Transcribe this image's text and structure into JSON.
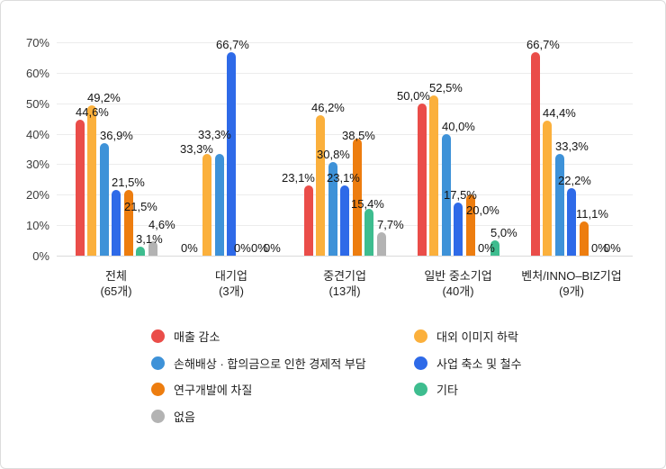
{
  "y_axis": {
    "ticks": [
      {
        "label": "70%",
        "value": 70
      },
      {
        "label": "60%",
        "value": 60
      },
      {
        "label": "50%",
        "value": 50
      },
      {
        "label": "40%",
        "value": 40
      },
      {
        "label": "30%",
        "value": 30
      },
      {
        "label": "20%",
        "value": 20
      },
      {
        "label": "10%",
        "value": 10
      },
      {
        "label": "0%",
        "value": 0
      }
    ]
  },
  "palette": {
    "red": "#EA4D49",
    "amber": "#FBB03C",
    "lightblue": "#3E92D8",
    "blue": "#2E6AE8",
    "orange": "#ED7D0F",
    "green": "#3EBD8F",
    "gray": "#B3B3B3"
  },
  "groups": [
    {
      "name": "전체",
      "count": "(65개)",
      "bars": [
        {
          "key": "sales-decrease",
          "series": "매출 감소",
          "color": "red",
          "value": 44.6,
          "label": "44,6%"
        },
        {
          "key": "image-decline",
          "series": "대외 이미지 하락",
          "color": "amber",
          "value": 49.2,
          "label": "49,2%"
        },
        {
          "key": "settlement-burden",
          "series": "손해배상 · 합의금으로 인한 경제적 부담",
          "color": "lightblue",
          "value": 36.9,
          "label": "36,9%"
        },
        {
          "key": "business-reduction",
          "series": "사업 축소 및 철수",
          "color": "blue",
          "value": 21.5,
          "label": "21,5%"
        },
        {
          "key": "rnd-disruption",
          "series": "연구개발에 차질",
          "color": "orange",
          "value": 21.5,
          "label": "21,5%",
          "label_dy": 27
        },
        {
          "key": "other",
          "series": "기타",
          "color": "green",
          "value": 3.1,
          "label": "3,1%"
        },
        {
          "key": "none",
          "series": "없음",
          "color": "gray",
          "value": 4.6,
          "label": "4,6%",
          "label_dy": -10
        }
      ]
    },
    {
      "name": "대기업",
      "count": "(3개)",
      "bars": [
        {
          "key": "sales-decrease",
          "series": "매출 감소",
          "color": "red",
          "value": 0,
          "label": "0%",
          "label_dx": -11
        },
        {
          "key": "image-decline",
          "series": "대외 이미지 하락",
          "color": "amber",
          "value": 33.3,
          "label": "33,3%",
          "label_dx": -25,
          "label_dy": 3
        },
        {
          "key": "settlement-burden",
          "series": "손해배상 · 합의금으로 인한 경제적 부담",
          "color": "lightblue",
          "value": 33.3,
          "label": "33,3%",
          "label_dx": -19,
          "label_dy": -13
        },
        {
          "key": "business-reduction",
          "series": "사업 축소 및 철수",
          "color": "blue",
          "value": 66.7,
          "label": "66,7%",
          "label_dx": -12
        },
        {
          "key": "rnd-disruption",
          "series": "연구개발에 차질",
          "color": "orange",
          "value": 0,
          "label": "0%",
          "label_dx": -6
        },
        {
          "key": "other",
          "series": "기타",
          "color": "green",
          "value": 0,
          "label": "0%"
        },
        {
          "key": "none",
          "series": "없음",
          "color": "gray",
          "value": 0,
          "label": "0%"
        }
      ]
    },
    {
      "name": "중견기업",
      "count": "(13개)",
      "bars": [
        {
          "key": "sales-decrease",
          "series": "매출 감소",
          "color": "red",
          "value": 23.1,
          "label": "23,1%",
          "label_dx": -25
        },
        {
          "key": "image-decline",
          "series": "대외 이미지 하락",
          "color": "amber",
          "value": 46.2,
          "label": "46,2%",
          "label_dx": -5
        },
        {
          "key": "settlement-burden",
          "series": "손해배상 · 합의금으로 인한 경제적 부담",
          "color": "lightblue",
          "value": 30.8,
          "label": "30,8%",
          "label_dx": -13
        },
        {
          "key": "business-reduction",
          "series": "사업 축소 및 철수",
          "color": "blue",
          "value": 23.1,
          "label": "23,1%",
          "label_dx": -15
        },
        {
          "key": "rnd-disruption",
          "series": "연구개발에 차질",
          "color": "orange",
          "value": 38.5,
          "label": "38,5%",
          "label_dx": -12,
          "label_dy": 5
        },
        {
          "key": "other",
          "series": "기타",
          "color": "green",
          "value": 15.4,
          "label": "15,4%",
          "label_dx": -15,
          "label_dy": 3
        },
        {
          "key": "none",
          "series": "없음",
          "color": "gray",
          "value": 7.7,
          "label": "7,7%"
        }
      ]
    },
    {
      "name": "일반 중소기업",
      "count": "(40개)",
      "bars": [
        {
          "key": "sales-decrease",
          "series": "매출 감소",
          "color": "red",
          "value": 50.0,
          "label": "50,0%",
          "label_dx": -23
        },
        {
          "key": "image-decline",
          "series": "대외 이미지 하락",
          "color": "amber",
          "value": 52.5,
          "label": "52,5%"
        },
        {
          "key": "settlement-burden",
          "series": "손해배상 · 합의금으로 인한 경제적 부담",
          "color": "lightblue",
          "value": 40.0,
          "label": "40,0%"
        },
        {
          "key": "business-reduction",
          "series": "사업 축소 및 철수",
          "color": "blue",
          "value": 17.5,
          "label": "17,5%",
          "label_dx": -11
        },
        {
          "key": "rnd-disruption",
          "series": "연구개발에 차질",
          "color": "orange",
          "value": 20.0,
          "label": "20,0%",
          "label_dy": 26
        },
        {
          "key": "none",
          "series": "없음",
          "color": "gray",
          "value": 0,
          "label": "0%"
        },
        {
          "key": "other",
          "series": "기타",
          "color": "green",
          "value": 5.0,
          "label": "5,0%"
        }
      ]
    },
    {
      "name": "벤처/INNO–BIZ기업",
      "count": "(9개)",
      "bars": [
        {
          "key": "sales-decrease",
          "series": "매출 감소",
          "color": "red",
          "value": 66.7,
          "label": "66,7%",
          "label_dx": -5
        },
        {
          "key": "image-decline",
          "series": "대외 이미지 하락",
          "color": "amber",
          "value": 44.4,
          "label": "44,4%"
        },
        {
          "key": "settlement-burden",
          "series": "손해배상 · 합의금으로 인한 경제적 부담",
          "color": "lightblue",
          "value": 33.3,
          "label": "33,3%"
        },
        {
          "key": "business-reduction",
          "series": "사업 축소 및 철수",
          "color": "blue",
          "value": 22.2,
          "label": "22,2%",
          "label_dx": -10
        },
        {
          "key": "rnd-disruption",
          "series": "연구개발에 차질",
          "color": "orange",
          "value": 11.1,
          "label": "11,1%",
          "label_dx": -4
        },
        {
          "key": "other",
          "series": "기타",
          "color": "green",
          "value": 0,
          "label": "0%"
        },
        {
          "key": "none",
          "series": "없음",
          "color": "gray",
          "value": 0,
          "label": "0%"
        }
      ]
    }
  ],
  "legend": {
    "left": [
      {
        "key": "sales-decrease",
        "label": "매출 감소",
        "color": "red"
      },
      {
        "key": "settlement-burden",
        "label": "손해배상 · 합의금으로 인한 경제적 부담",
        "color": "lightblue"
      },
      {
        "key": "rnd-disruption",
        "label": "연구개발에 차질",
        "color": "orange"
      },
      {
        "key": "none",
        "label": "없음",
        "color": "gray"
      }
    ],
    "right": [
      {
        "key": "image-decline",
        "label": "대외 이미지 하락",
        "color": "amber"
      },
      {
        "key": "business-reduction",
        "label": "사업 축소 및 철수",
        "color": "blue"
      },
      {
        "key": "other",
        "label": "기타",
        "color": "green"
      }
    ]
  },
  "chart_data": {
    "type": "bar",
    "categories": [
      "전체 (65개)",
      "대기업 (3개)",
      "중견기업 (13개)",
      "일반 중소기업 (40개)",
      "벤처/INNO–BIZ기업 (9개)"
    ],
    "series": [
      {
        "name": "매출 감소",
        "color": "#EA4D49",
        "values": [
          44.6,
          0,
          23.1,
          50.0,
          66.7
        ]
      },
      {
        "name": "대외 이미지 하락",
        "color": "#FBB03C",
        "values": [
          49.2,
          33.3,
          46.2,
          52.5,
          44.4
        ]
      },
      {
        "name": "손해배상 · 합의금으로 인한 경제적 부담",
        "color": "#3E92D8",
        "values": [
          36.9,
          33.3,
          30.8,
          40.0,
          33.3
        ]
      },
      {
        "name": "사업 축소 및 철수",
        "color": "#2E6AE8",
        "values": [
          21.5,
          66.7,
          23.1,
          17.5,
          22.2
        ]
      },
      {
        "name": "연구개발에 차질",
        "color": "#ED7D0F",
        "values": [
          21.5,
          0,
          38.5,
          20.0,
          11.1
        ]
      },
      {
        "name": "기타",
        "color": "#3EBD8F",
        "values": [
          3.1,
          0,
          15.4,
          5.0,
          0
        ]
      },
      {
        "name": "없음",
        "color": "#B3B3B3",
        "values": [
          4.6,
          0,
          7.7,
          0,
          0
        ]
      }
    ],
    "title": "",
    "xlabel": "",
    "ylabel": "",
    "ylim": [
      0,
      70
    ],
    "y_tick_step": 10,
    "unit": "%",
    "decimal_separator": ",",
    "grid": true,
    "legend_position": "bottom"
  }
}
